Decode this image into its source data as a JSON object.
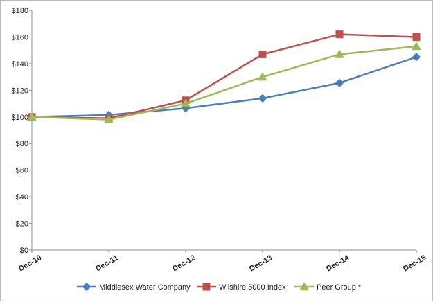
{
  "chart_data": {
    "type": "line",
    "title": "",
    "xlabel": "",
    "ylabel": "",
    "categories": [
      "Dec-10",
      "Dec-11",
      "Dec-12",
      "Dec-13",
      "Dec-14",
      "Dec-15"
    ],
    "ylim": [
      0,
      180
    ],
    "ytick_step": 20,
    "ytick_labels": [
      "$0",
      "$20",
      "$40",
      "$60",
      "$80",
      "$100",
      "$120",
      "$140",
      "$160",
      "$180"
    ],
    "grid": false,
    "legend_position": "bottom",
    "series": [
      {
        "name": "Middlesex Water Company",
        "color": "#4a7ebf",
        "marker": "diamond",
        "values": [
          100,
          101.5,
          106.5,
          114,
          125.5,
          145
        ]
      },
      {
        "name": "Wilshire 5000 Index",
        "color": "#c0504d",
        "marker": "square",
        "values": [
          100,
          99,
          112.5,
          147,
          162,
          160
        ]
      },
      {
        "name": "Peer Group *",
        "color": "#9bbb59",
        "marker": "triangle",
        "values": [
          100,
          98,
          110,
          130,
          147,
          153
        ]
      }
    ]
  }
}
